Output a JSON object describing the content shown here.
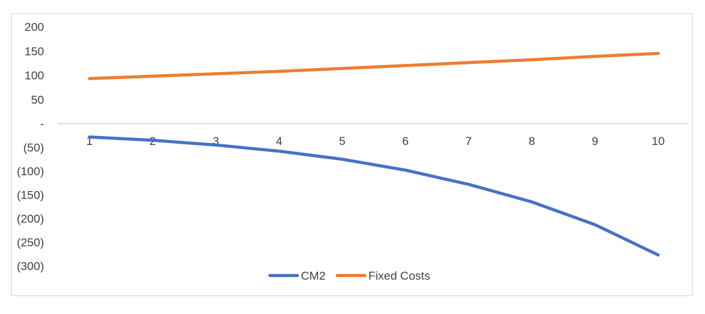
{
  "chart_data": {
    "type": "line",
    "x": [
      1,
      2,
      3,
      4,
      5,
      6,
      7,
      8,
      9,
      10
    ],
    "x_tick_labels": [
      "1",
      "2",
      "3",
      "4",
      "5",
      "6",
      "7",
      "8",
      "9",
      "10"
    ],
    "series": [
      {
        "name": "CM2",
        "color": "#4472C4",
        "values": [
          -28,
          -35,
          -45,
          -58,
          -75,
          -98,
          -128,
          -165,
          -213,
          -277
        ]
      },
      {
        "name": "Fixed Costs",
        "color": "#ED7D31",
        "values": [
          93,
          98,
          103,
          108,
          114,
          120,
          126,
          132,
          139,
          145
        ]
      }
    ],
    "y_ticks": [
      200,
      150,
      100,
      50,
      0,
      -50,
      -100,
      -150,
      -200,
      -250,
      -300
    ],
    "y_tick_labels": [
      "200",
      "150",
      "100",
      "50",
      "-",
      "(50)",
      "(100)",
      "(150)",
      "(200)",
      "(250)",
      "(300)"
    ],
    "ylim": [
      -300,
      200
    ],
    "grid": false,
    "legend_position": "bottom",
    "title": "",
    "xlabel": "",
    "ylabel": ""
  }
}
